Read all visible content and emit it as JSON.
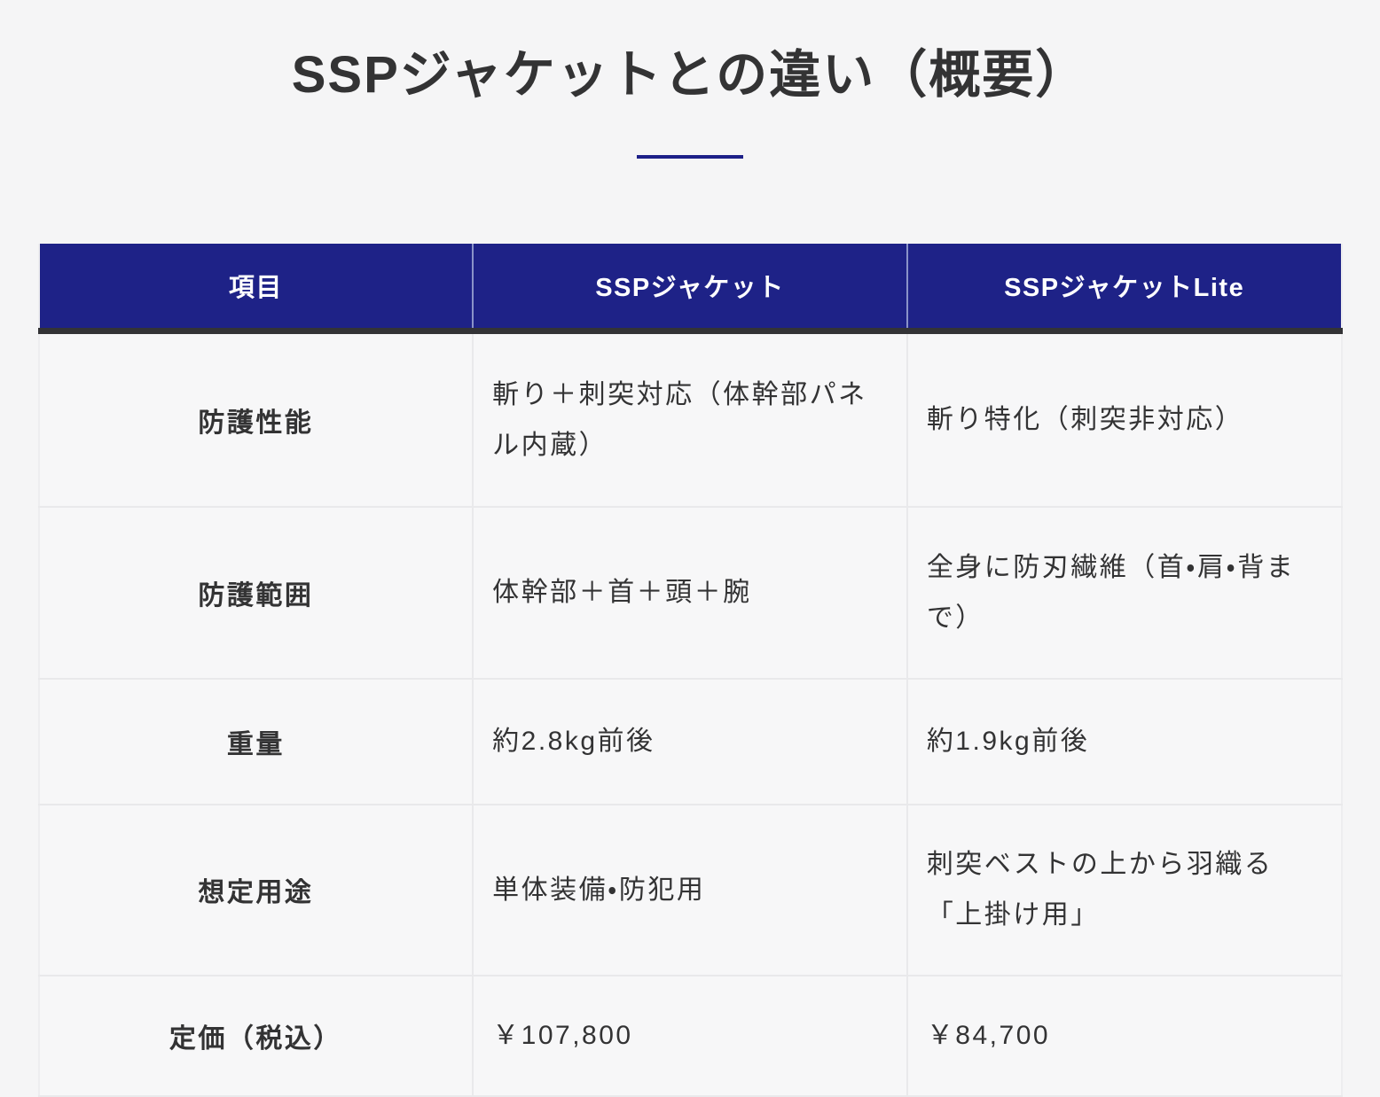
{
  "page": {
    "title": "SSPジャケットとの違い（概要）"
  },
  "colors": {
    "page_background": "#f5f5f6",
    "header_background": "#1e2287",
    "title_underline_accent": "#1d2088",
    "header_bottom_bar": "#333336",
    "text": "#333334",
    "row_divider": "#e9e9eb"
  },
  "table": {
    "columns": [
      "項目",
      "SSPジャケット",
      "SSPジャケットLite"
    ],
    "rows": [
      {
        "cells": [
          "防護性能",
          "斬り＋刺突対応（体幹部パネル内蔵）",
          "斬り特化（刺突非対応）"
        ]
      },
      {
        "cells": [
          "防護範囲",
          "体幹部＋首＋頭＋腕",
          "全身に防刃繊維（首・肩・背まで）"
        ]
      },
      {
        "cells": [
          "重量",
          "約2.8kg前後",
          "約1.9kg前後"
        ]
      },
      {
        "cells": [
          "想定用途",
          "単体装備・防犯用",
          "刺突ベストの上から羽織る「上掛け用」"
        ]
      },
      {
        "cells": [
          "定価（税込）",
          "￥107,800",
          "￥84,700"
        ]
      }
    ]
  }
}
